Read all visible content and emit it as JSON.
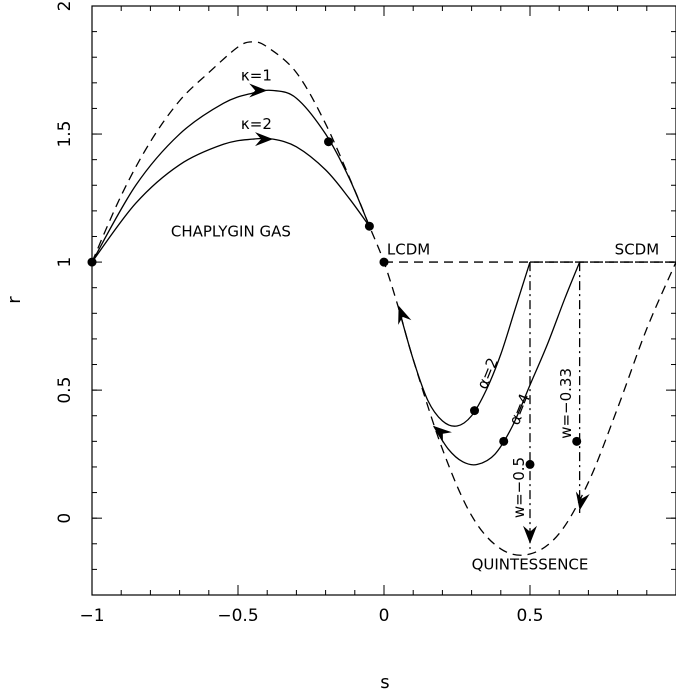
{
  "chart_data": {
    "type": "line",
    "xlabel": "s",
    "ylabel": "r",
    "xlim": [
      -1.0,
      1.0
    ],
    "ylim": [
      -0.3,
      2.0
    ],
    "x_ticks": [
      {
        "value": -1,
        "label": "−1"
      },
      {
        "value": -0.5,
        "label": "−0.5"
      },
      {
        "value": 0,
        "label": "0"
      },
      {
        "value": 0.5,
        "label": "0.5"
      }
    ],
    "y_ticks": [
      {
        "value": 0,
        "label": "0"
      },
      {
        "value": 0.5,
        "label": "0.5"
      },
      {
        "value": 1,
        "label": "1"
      },
      {
        "value": 1.5,
        "label": "1.5"
      },
      {
        "value": 2,
        "label": "2"
      }
    ],
    "grid": false,
    "series": [
      {
        "style": "dashed",
        "x": [
          -1.0,
          -0.9,
          -0.8,
          -0.7,
          -0.6,
          -0.5,
          -0.45,
          -0.4,
          -0.3,
          -0.2,
          -0.1,
          -0.05,
          0.0,
          0.05,
          0.1,
          0.2,
          0.3,
          0.4,
          0.5,
          0.6,
          0.7,
          0.8,
          0.9,
          1.0
        ],
        "y": [
          1.0,
          1.26,
          1.47,
          1.63,
          1.74,
          1.84,
          1.86,
          1.84,
          1.74,
          1.54,
          1.28,
          1.14,
          1.0,
          0.82,
          0.62,
          0.27,
          0.01,
          -0.12,
          -0.14,
          -0.06,
          0.14,
          0.43,
          0.74,
          1.0
        ]
      },
      {
        "style": "dashed",
        "x": [
          0.0,
          1.0
        ],
        "y": [
          1.0,
          1.0
        ]
      },
      {
        "style": "dashed",
        "x": [
          0.5,
          1.0
        ],
        "y": [
          1.0,
          1.0
        ]
      },
      {
        "style": "solid",
        "x": [
          -1.0,
          -0.85,
          -0.7,
          -0.55,
          -0.45,
          -0.38,
          -0.3,
          -0.2,
          -0.12,
          -0.05
        ],
        "y": [
          1.0,
          1.3,
          1.5,
          1.62,
          1.66,
          1.67,
          1.64,
          1.5,
          1.33,
          1.14
        ]
      },
      {
        "style": "solid",
        "x": [
          -1.0,
          -0.85,
          -0.7,
          -0.55,
          -0.45,
          -0.38,
          -0.3,
          -0.2,
          -0.12,
          -0.05
        ],
        "y": [
          1.0,
          1.23,
          1.38,
          1.46,
          1.48,
          1.48,
          1.45,
          1.36,
          1.25,
          1.14
        ]
      },
      {
        "style": "solid",
        "x": [
          0.05,
          0.1,
          0.15,
          0.2,
          0.25,
          0.3,
          0.35,
          0.4,
          0.45,
          0.5
        ],
        "y": [
          0.82,
          0.62,
          0.46,
          0.38,
          0.36,
          0.4,
          0.5,
          0.64,
          0.82,
          1.0
        ]
      },
      {
        "style": "solid",
        "x": [
          0.17,
          0.22,
          0.27,
          0.32,
          0.38,
          0.44,
          0.5,
          0.56,
          0.62,
          0.67
        ],
        "y": [
          0.36,
          0.27,
          0.22,
          0.21,
          0.25,
          0.36,
          0.52,
          0.68,
          0.86,
          1.0
        ]
      },
      {
        "style": "dashdot",
        "x": [
          0.5,
          0.5
        ],
        "y": [
          1.0,
          -0.12
        ]
      },
      {
        "style": "dashdot",
        "x": [
          0.67,
          0.67
        ],
        "y": [
          1.0,
          0.02
        ]
      }
    ],
    "points": [
      {
        "x": -1.0,
        "y": 1.0
      },
      {
        "x": 0.0,
        "y": 1.0
      },
      {
        "x": -0.05,
        "y": 1.14
      },
      {
        "x": -0.19,
        "y": 1.47
      },
      {
        "x": 0.31,
        "y": 0.42
      },
      {
        "x": 0.41,
        "y": 0.3
      },
      {
        "x": 0.5,
        "y": 0.21
      },
      {
        "x": 0.66,
        "y": 0.3
      }
    ],
    "arrows": [
      {
        "x": -0.4,
        "y": 1.67,
        "angle": 0
      },
      {
        "x": -0.38,
        "y": 1.48,
        "angle": 0
      },
      {
        "x": 0.05,
        "y": 0.83,
        "angle": -110
      },
      {
        "x": 0.17,
        "y": 0.36,
        "angle": -140
      },
      {
        "x": 0.5,
        "y": -0.1,
        "angle": 90
      },
      {
        "x": 0.67,
        "y": 0.03,
        "angle": 100
      }
    ],
    "annotations": [
      {
        "text": "κ=1",
        "x": -0.49,
        "y": 1.71,
        "rotate": 0,
        "anchor": "start"
      },
      {
        "text": "κ=2",
        "x": -0.49,
        "y": 1.52,
        "rotate": 0,
        "anchor": "start"
      },
      {
        "text": "CHAPLYGIN GAS",
        "x": -0.73,
        "y": 1.1,
        "rotate": 0,
        "anchor": "start"
      },
      {
        "text": "LCDM",
        "x": 0.01,
        "y": 1.03,
        "rotate": 0,
        "anchor": "start"
      },
      {
        "text": "SCDM",
        "x": 0.79,
        "y": 1.03,
        "rotate": 0,
        "anchor": "start"
      },
      {
        "text": "QUINTESSENCE",
        "x": 0.3,
        "y": -0.2,
        "rotate": 0,
        "anchor": "start"
      },
      {
        "text": "α=2",
        "x": 0.35,
        "y": 0.5,
        "rotate": -68,
        "anchor": "start"
      },
      {
        "text": "α=4",
        "x": 0.46,
        "y": 0.36,
        "rotate": -68,
        "anchor": "start"
      },
      {
        "text": "w=−0.5",
        "x": 0.48,
        "y": 0.0,
        "rotate": -90,
        "anchor": "start"
      },
      {
        "text": "w=−0.33",
        "x": 0.64,
        "y": 0.31,
        "rotate": -90,
        "anchor": "start"
      }
    ]
  }
}
